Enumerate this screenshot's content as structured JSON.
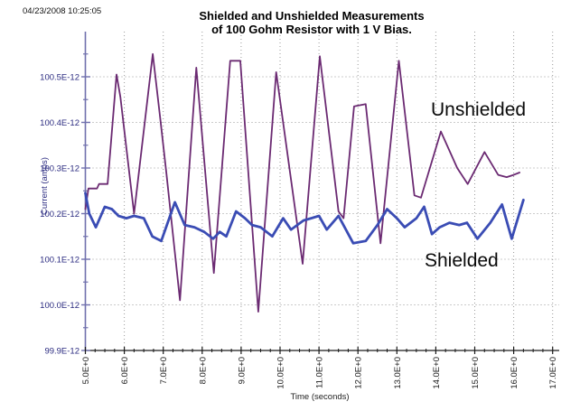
{
  "timestamp": "04/23/2008 10:25:05",
  "colors": {
    "background": "#ffffff",
    "y_axis": "#7070ad",
    "x_axis": "#1a1a1a",
    "grid": "#999999",
    "y_tick_text": "#2b2b80",
    "x_tick_text": "#1a1a1a",
    "unshielded_line": "#6b2a72",
    "shielded_line": "#3a4cb4"
  },
  "chart_data": {
    "type": "line",
    "title_line1": "Shielded and Unshielded Measurements",
    "title_line2": "of 100 Gohm Resistor with 1 V Bias.",
    "xlabel": "Time (seconds)",
    "ylabel": "Current (amps)",
    "grid": {
      "show": true,
      "style": "dotted"
    },
    "legend": "inline-annotations",
    "x_axis": {
      "min": 5,
      "max": 17,
      "major_step": 1,
      "minor_step": 0.25,
      "ticks": [
        {
          "label": "5.0E+0",
          "value": 5
        },
        {
          "label": "6.0E+0",
          "value": 6
        },
        {
          "label": "7.0E+0",
          "value": 7
        },
        {
          "label": "8.0E+0",
          "value": 8
        },
        {
          "label": "9.0E+0",
          "value": 9
        },
        {
          "label": "10.0E+0",
          "value": 10
        },
        {
          "label": "11.0E+0",
          "value": 11
        },
        {
          "label": "12.0E+0",
          "value": 12
        },
        {
          "label": "13.0E+0",
          "value": 13
        },
        {
          "label": "14.0E+0",
          "value": 14
        },
        {
          "label": "15.0E+0",
          "value": 15
        },
        {
          "label": "16.0E+0",
          "value": 16
        },
        {
          "label": "17.0E+0",
          "value": 17
        }
      ]
    },
    "y_axis": {
      "min": 99.9,
      "max": 100.6,
      "major_step": 0.1,
      "minor_step": 0.05,
      "unit": "E-12 amps",
      "ticks": [
        {
          "label": "100.5E-12",
          "value": 100.5
        },
        {
          "label": "100.4E-12",
          "value": 100.4
        },
        {
          "label": "100.3E-12",
          "value": 100.3
        },
        {
          "label": "100.2E-12",
          "value": 100.2
        },
        {
          "label": "100.1E-12",
          "value": 100.1
        },
        {
          "label": "100.0E-12",
          "value": 100.0
        },
        {
          "label": "99.9E-12",
          "value": 99.9
        }
      ]
    },
    "annotations": [
      {
        "text": "Unshielded"
      },
      {
        "text": "Shielded"
      }
    ],
    "series": [
      {
        "name": "Unshielded",
        "color": "#6b2a72",
        "points": [
          [
            5.0,
            100.21
          ],
          [
            5.08,
            100.255
          ],
          [
            5.3,
            100.255
          ],
          [
            5.35,
            100.265
          ],
          [
            5.57,
            100.265
          ],
          [
            5.8,
            100.505
          ],
          [
            5.9,
            100.455
          ],
          [
            6.25,
            100.2
          ],
          [
            6.73,
            100.55
          ],
          [
            6.92,
            100.41
          ],
          [
            7.08,
            100.29
          ],
          [
            7.43,
            100.01
          ],
          [
            7.85,
            100.52
          ],
          [
            8.3,
            100.07
          ],
          [
            8.72,
            100.535
          ],
          [
            8.98,
            100.535
          ],
          [
            9.44,
            99.985
          ],
          [
            9.9,
            100.51
          ],
          [
            10.58,
            100.09
          ],
          [
            11.02,
            100.545
          ],
          [
            11.5,
            100.205
          ],
          [
            11.63,
            100.19
          ],
          [
            11.9,
            100.435
          ],
          [
            12.2,
            100.44
          ],
          [
            12.58,
            100.135
          ],
          [
            13.05,
            100.535
          ],
          [
            13.45,
            100.24
          ],
          [
            13.62,
            100.235
          ],
          [
            14.13,
            100.38
          ],
          [
            14.55,
            100.3
          ],
          [
            14.82,
            100.265
          ],
          [
            15.25,
            100.335
          ],
          [
            15.6,
            100.285
          ],
          [
            15.82,
            100.28
          ],
          [
            16.0,
            100.285
          ],
          [
            16.15,
            100.29
          ]
        ]
      },
      {
        "name": "Shielded",
        "color": "#3a4cb4",
        "points": [
          [
            5.0,
            100.245
          ],
          [
            5.1,
            100.2
          ],
          [
            5.27,
            100.17
          ],
          [
            5.5,
            100.215
          ],
          [
            5.68,
            100.21
          ],
          [
            5.85,
            100.195
          ],
          [
            6.05,
            100.19
          ],
          [
            6.25,
            100.195
          ],
          [
            6.5,
            100.19
          ],
          [
            6.72,
            100.15
          ],
          [
            6.95,
            100.14
          ],
          [
            7.3,
            100.225
          ],
          [
            7.55,
            100.175
          ],
          [
            7.8,
            100.17
          ],
          [
            8.05,
            100.16
          ],
          [
            8.28,
            100.145
          ],
          [
            8.45,
            100.16
          ],
          [
            8.62,
            100.15
          ],
          [
            8.87,
            100.205
          ],
          [
            9.1,
            100.19
          ],
          [
            9.28,
            100.175
          ],
          [
            9.5,
            100.17
          ],
          [
            9.8,
            100.15
          ],
          [
            10.08,
            100.19
          ],
          [
            10.28,
            100.165
          ],
          [
            10.6,
            100.185
          ],
          [
            10.8,
            100.19
          ],
          [
            11.0,
            100.195
          ],
          [
            11.2,
            100.165
          ],
          [
            11.5,
            100.195
          ],
          [
            11.88,
            100.135
          ],
          [
            12.2,
            100.14
          ],
          [
            12.5,
            100.175
          ],
          [
            12.75,
            100.21
          ],
          [
            13.0,
            100.19
          ],
          [
            13.2,
            100.17
          ],
          [
            13.5,
            100.19
          ],
          [
            13.7,
            100.215
          ],
          [
            13.9,
            100.155
          ],
          [
            14.1,
            100.17
          ],
          [
            14.35,
            100.18
          ],
          [
            14.6,
            100.175
          ],
          [
            14.8,
            100.18
          ],
          [
            15.07,
            100.145
          ],
          [
            15.4,
            100.18
          ],
          [
            15.7,
            100.22
          ],
          [
            15.95,
            100.145
          ],
          [
            16.25,
            100.23
          ]
        ]
      }
    ]
  }
}
